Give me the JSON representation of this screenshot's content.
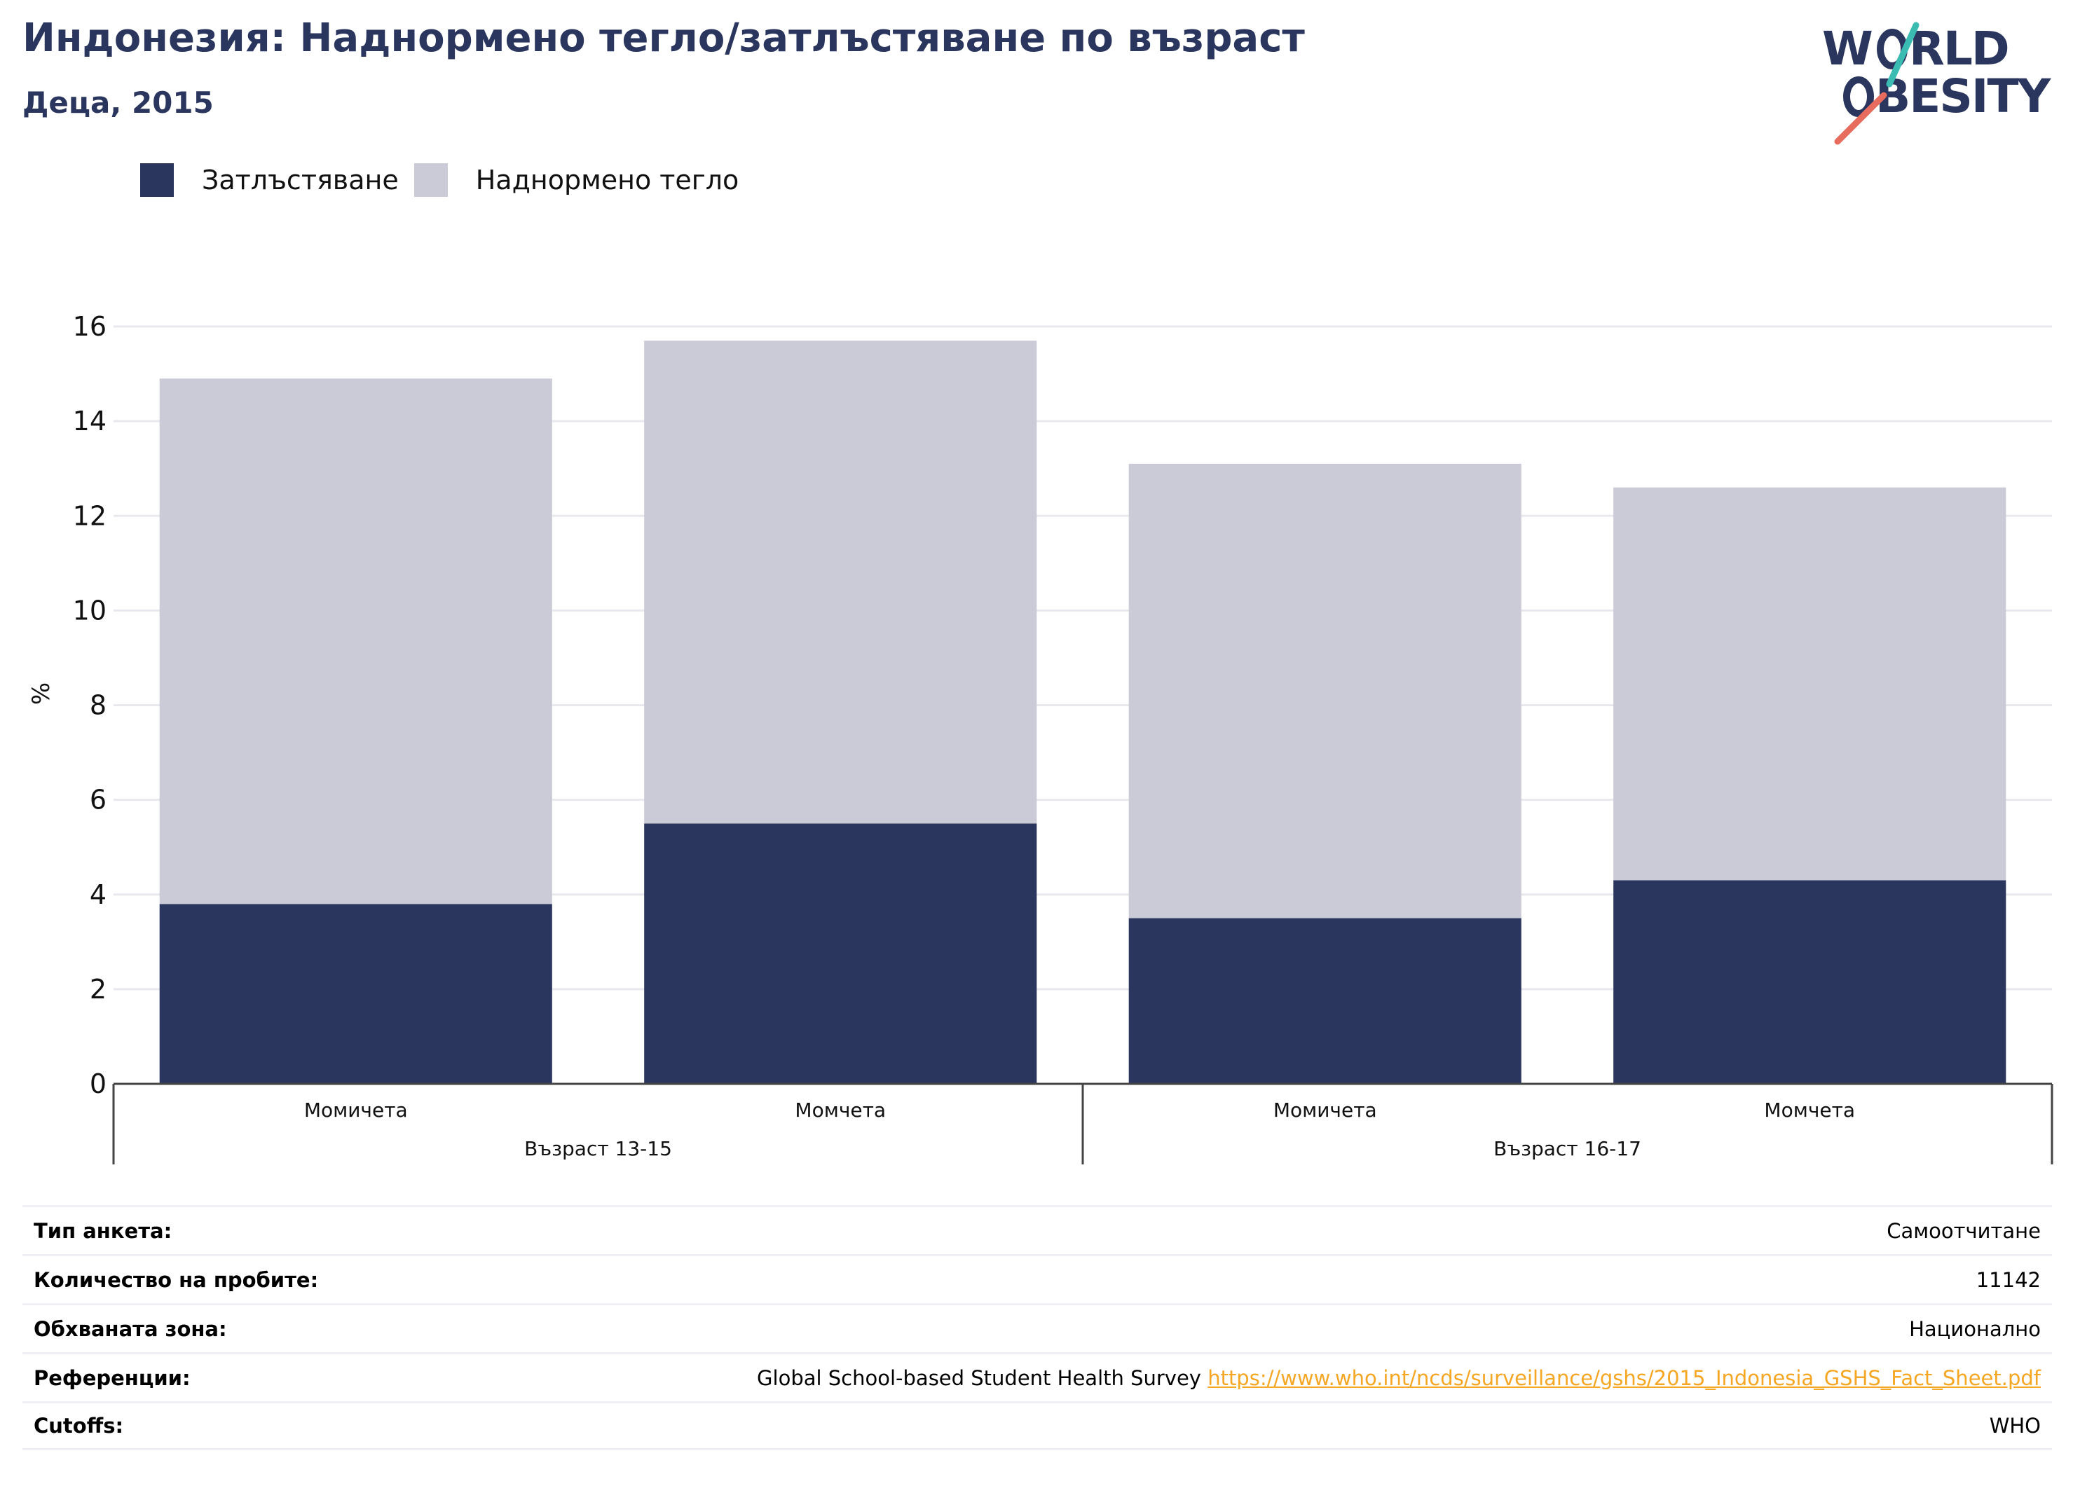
{
  "title": "Индонезия: Наднормено тегло/затлъстяване по възраст",
  "subtitle": "Деца, 2015",
  "logo": {
    "line1": "WORLD",
    "line2": "OBESITY"
  },
  "colors": {
    "obesity": "#2b365f",
    "overweight": "#cacbd7",
    "title": "#2b365f",
    "link": "#f5a623",
    "grid": "#e8e8ee"
  },
  "chart_data": {
    "type": "bar",
    "stacked": true,
    "ylabel": "%",
    "ylim": [
      0,
      16
    ],
    "yticks": [
      "0",
      "2",
      "4",
      "6",
      "8",
      "10",
      "12",
      "14",
      "16"
    ],
    "categories": [
      "Момичета",
      "Момчета",
      "Момичета",
      "Момчета"
    ],
    "groups": [
      {
        "label": "Възраст 13-15",
        "categories": [
          0,
          1
        ]
      },
      {
        "label": "Възраст 16-17",
        "categories": [
          2,
          3
        ]
      }
    ],
    "series": [
      {
        "name": "Затлъстяване",
        "color": "#2b365f",
        "values": [
          3.8,
          5.5,
          3.5,
          4.3
        ]
      },
      {
        "name": "Наднормено тегло",
        "color": "#cacbd7",
        "values": [
          11.1,
          10.2,
          9.6,
          8.3
        ]
      }
    ],
    "grid": true,
    "legend": "top-left"
  },
  "info": [
    {
      "label": "Тип анкета:",
      "value": "Самоотчитане"
    },
    {
      "label": "Количество на пробите:",
      "value": "11142"
    },
    {
      "label": "Обхваната зона:",
      "value": "Национално"
    },
    {
      "label": "Референции:",
      "value": "Global School-based Student Health Survey",
      "link": "https://www.who.int/ncds/surveillance/gshs/2015_Indonesia_GSHS_Fact_Sheet.pdf"
    },
    {
      "label": "Cutoffs:",
      "value": "WHO"
    }
  ]
}
